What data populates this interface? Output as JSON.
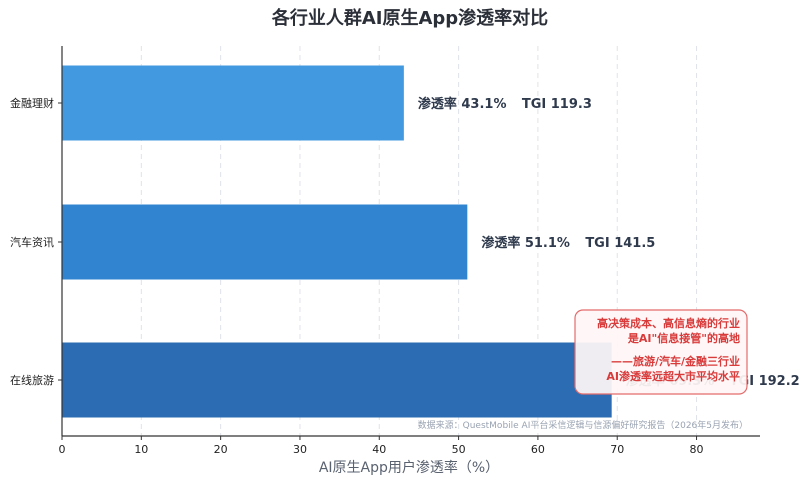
{
  "chart_data": {
    "type": "bar",
    "orientation": "horizontal",
    "title": "各行业人群AI原生App渗透率对比",
    "xlabel": "AI原生App用户渗透率（%）",
    "xlim": [
      0,
      88
    ],
    "xticks": [
      "0",
      "10",
      "20",
      "30",
      "40",
      "50",
      "60",
      "70",
      "80"
    ],
    "grid": "vertical-dashed",
    "categories": [
      "金融理财",
      "汽车资讯",
      "在线旅游"
    ],
    "values": [
      43.1,
      51.1,
      69.3
    ],
    "tgi": [
      119.3,
      141.5,
      192.2
    ],
    "data_labels": [
      {
        "rate": "渗透率 43.1%",
        "tgi": "TGI 119.3"
      },
      {
        "rate": "渗透率 51.1%",
        "tgi": "TGI 141.5"
      },
      {
        "rate": "渗透率 69.3%",
        "tgi": "TGI 192.2"
      }
    ],
    "colors": [
      "#4399e0",
      "#3184d0",
      "#2c6cb2"
    ],
    "annotation": {
      "lines": [
        "高决策成本、高信息熵的行业",
        "是AI\"信息接管\"的高地",
        "",
        "——旅游/汽车/金融三行业",
        "AI渗透率远超大市平均水平"
      ],
      "text_color": "#d93a3a",
      "border_color": "#e36b6b"
    },
    "source": "数据来源：QuestMobile AI平台采信逻辑与信源偏好研究报告（2026年5月发布）"
  }
}
